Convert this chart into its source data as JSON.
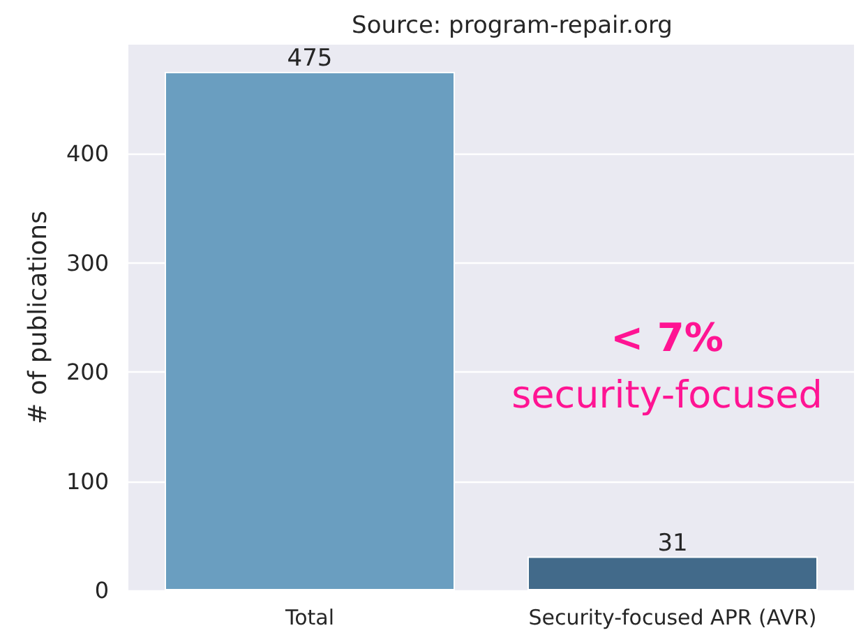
{
  "chart_data": {
    "type": "bar",
    "title": "Source: program-repair.org",
    "ylabel": "# of publications",
    "categories": [
      "Total",
      "Security-focused APR (AVR)"
    ],
    "values": [
      475,
      31
    ],
    "colors": [
      "#6a9ec0",
      "#426a8a"
    ],
    "ylim": [
      0,
      500
    ],
    "yticks": [
      0,
      100,
      200,
      300,
      400
    ],
    "grid": "y",
    "data_labels": true,
    "annotations": [
      "< 7%",
      "security-focused"
    ]
  }
}
